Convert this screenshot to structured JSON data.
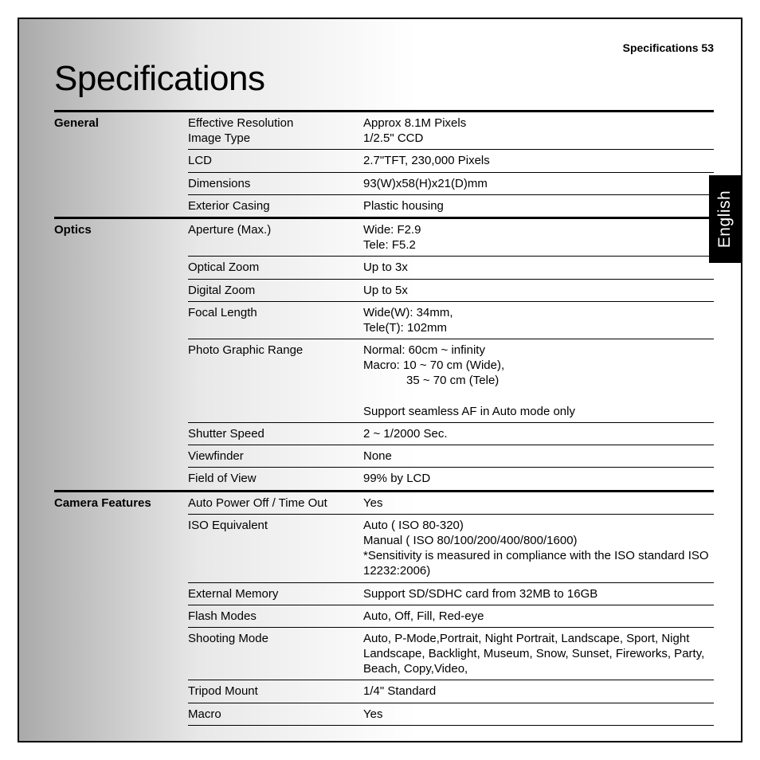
{
  "header": {
    "text": "Specifications  53"
  },
  "title": "Specifications",
  "language_tab": "English",
  "colors": {
    "text": "#000000",
    "border": "#000000",
    "gradient_start": "#aaaaaa",
    "gradient_end": "#ffffff",
    "tab_bg": "#000000",
    "tab_text": "#ffffff"
  },
  "typography": {
    "title_fontsize": 44,
    "body_fontsize": 15,
    "header_fontsize": 14,
    "tab_fontsize": 21
  },
  "sections": [
    {
      "category": "General",
      "rows": [
        {
          "label": "Effective Resolution\nImage Type",
          "value": "Approx 8.1M Pixels\n1/2.5\" CCD"
        },
        {
          "label": "LCD",
          "value": "2.7\"TFT, 230,000 Pixels"
        },
        {
          "label": "Dimensions",
          "value": "93(W)x58(H)x21(D)mm"
        },
        {
          "label": "Exterior Casing",
          "value": "Plastic housing"
        }
      ]
    },
    {
      "category": "Optics",
      "rows": [
        {
          "label": "Aperture (Max.)",
          "value": "Wide: F2.9\nTele: F5.2"
        },
        {
          "label": "Optical Zoom",
          "value": "Up to 3x"
        },
        {
          "label": "Digital Zoom",
          "value": "Up to 5x"
        },
        {
          "label": "Focal Length",
          "value": "Wide(W): 34mm,\nTele(T): 102mm"
        },
        {
          "label": "Photo Graphic Range",
          "value": "Normal: 60cm ~ infinity\nMacro: 10 ~ 70 cm (Wide),\n[[INDENT]]35 ~ 70 cm (Tele)\nSupport seamless AF in Auto mode only"
        },
        {
          "label": "Shutter Speed",
          "value": "2 ~ 1/2000 Sec."
        },
        {
          "label": "Viewfinder",
          "value": "None"
        },
        {
          "label": "Field of View",
          "value": "99% by LCD"
        }
      ]
    },
    {
      "category": "Camera Features",
      "rows": [
        {
          "label": "Auto Power Off / Time Out",
          "value": "Yes"
        },
        {
          "label": "ISO Equivalent",
          "value": "Auto ( ISO 80-320)\nManual ( ISO 80/100/200/400/800/1600)\n*Sensitivity is measured in compliance with the ISO standard  ISO 12232:2006)"
        },
        {
          "label": "External Memory",
          "value": "Support SD/SDHC card from 32MB to 16GB"
        },
        {
          "label": "Flash Modes",
          "value": "Auto, Off, Fill, Red-eye"
        },
        {
          "label": "Shooting Mode",
          "value": "Auto, P-Mode,Portrait, Night Portrait,  Landscape, Sport,  Night Landscape, Backlight,  Museum, Snow, Sunset, Fireworks, Party,  Beach, Copy,Video,"
        },
        {
          "label": "Tripod Mount",
          "value": "1/4\" Standard"
        },
        {
          "label": "Macro",
          "value": "Yes"
        }
      ]
    }
  ]
}
